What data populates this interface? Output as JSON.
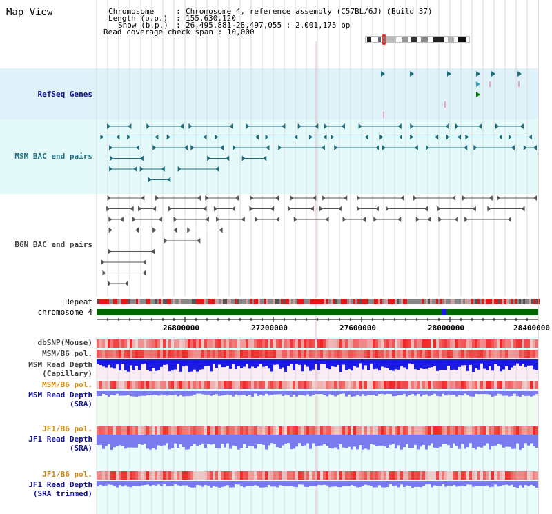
{
  "title": "Map View",
  "header": {
    "chrom_label": "Chromosome",
    "chrom_value": "Chromosome 4, reference assembly (C57BL/6J) (Build 37)",
    "length_label": "Length (b.p.)",
    "length_value": "155,630,120",
    "show_label": "Show (b.p.)",
    "show_value": "26,495,881-28,497,055 : 2,001,175 bp",
    "coverage_label": "Read coverage check span",
    "coverage_value": "10,000",
    "sep": ":"
  },
  "tracks": {
    "refseq": "RefSeq Genes",
    "msm_bac": "MSM BAC end pairs",
    "b6n_bac": "B6N BAC end pairs",
    "repeat": "Repeat",
    "chromosome": "chromosome 4",
    "dbsnp": "dbSNP(Mouse)",
    "msm_b6_pol_1": "MSM/B6 pol.",
    "msm_read_depth_cap_1": "MSM Read Depth",
    "msm_read_depth_cap_2": "(Capillary)",
    "msm_b6_pol_2": "MSM/B6 pol.",
    "msm_read_depth_sra_1": "MSM Read Depth",
    "msm_read_depth_sra_2": "(SRA)",
    "jf1_b6_pol_1": "JF1/B6 pol.",
    "jf1_read_depth_sra_1": "JF1 Read Depth",
    "jf1_read_depth_sra_2": "(SRA)",
    "jf1_b6_pol_2": "JF1/B6 pol.",
    "jf1_read_depth_trim_1": "JF1 Read Depth",
    "jf1_read_depth_trim_2": "(SRA trimmed)"
  },
  "axis": {
    "ticks": [
      "26800000",
      "27200000",
      "27600000",
      "28000000",
      "28400000"
    ]
  },
  "colors": {
    "refseq_bg": "#e0f2f9",
    "msm_bac_bg": "#e4fafa",
    "msm_bac": "#1e6e80",
    "b6n_bac": "#555555",
    "label_navy": "#101090",
    "label_teal": "#1e6e80",
    "label_gray": "#404040",
    "label_orange": "#d08a10",
    "chrom_green": "#006600",
    "depth_blue": "#1a1ae0",
    "depth_light": "#7a7aef"
  }
}
